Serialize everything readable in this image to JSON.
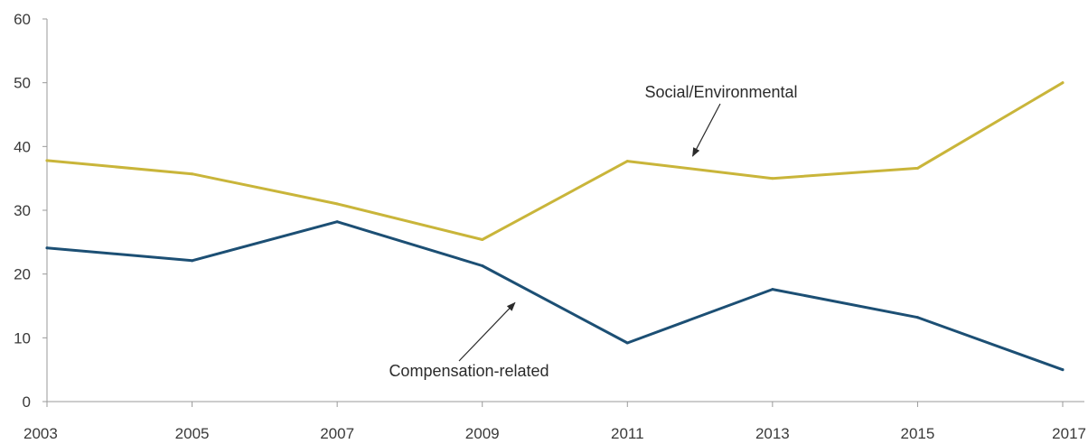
{
  "chart_data": {
    "type": "line",
    "title": "",
    "xlabel": "",
    "ylabel": "",
    "x": [
      2003,
      2005,
      2007,
      2009,
      2011,
      2013,
      2015,
      2017
    ],
    "x_tick_labels": [
      "2003",
      "2005",
      "2007",
      "2009",
      "2011",
      "2013",
      "2015",
      "2017"
    ],
    "y_tick_labels": [
      "0",
      "10",
      "20",
      "30",
      "40",
      "50",
      "60"
    ],
    "ylim": [
      0,
      60
    ],
    "grid": false,
    "legend": "none",
    "series": [
      {
        "name": "Social/Environmental",
        "color": "#c9b53a",
        "values": [
          37.8,
          35.7,
          31.0,
          25.4,
          37.7,
          35.0,
          36.6,
          50.0
        ]
      },
      {
        "name": "Compensation-related",
        "color": "#1c4f74",
        "values": [
          24.1,
          22.1,
          28.2,
          21.3,
          9.2,
          17.6,
          13.2,
          5.0
        ]
      }
    ],
    "annotations": [
      {
        "text": "Social/Environmental",
        "series": 0,
        "arrow_to": {
          "x": 2011.9,
          "y": 38.5
        }
      },
      {
        "text": "Compensation-related",
        "series": 1,
        "arrow_to": {
          "x": 2009.45,
          "y": 15.5
        }
      }
    ]
  }
}
